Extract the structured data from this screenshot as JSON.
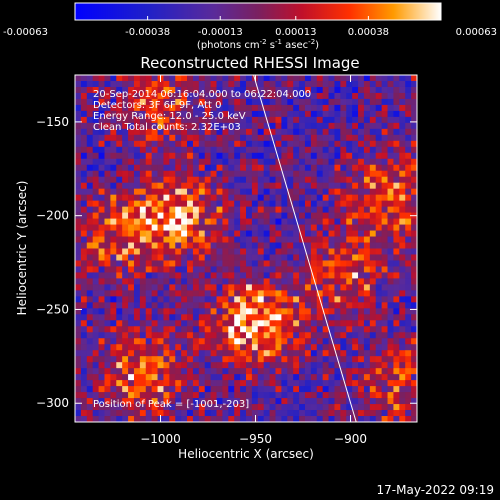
{
  "chart_data": {
    "type": "heatmap",
    "title": "Reconstructed RHESSI Image",
    "xlabel": "Heliocentric X (arcsec)",
    "ylabel": "Heliocentric Y (arcsec)",
    "xlim": [
      -1045,
      -865
    ],
    "ylim": [
      -310,
      -125
    ],
    "xticks": [
      -1000,
      -950,
      -900
    ],
    "xtick_labels": [
      "−1000",
      "−950",
      "−900"
    ],
    "yticks": [
      -150,
      -200,
      -250,
      -300
    ],
    "ytick_labels": [
      "−150",
      "−200",
      "−250",
      "−300"
    ],
    "colorbar": {
      "min": -0.00063,
      "max": 0.00063,
      "tick_values": [
        -0.00063,
        -0.00038,
        -0.00013,
        0.00013,
        0.00038,
        0.00063
      ],
      "tick_labels": [
        "-0.00063",
        "-0.00038",
        "-0.00013",
        "0.00013",
        "0.00038",
        "0.00063"
      ],
      "units_main": "(photons cm",
      "units_sup1": "-2",
      "units_mid1": " s",
      "units_sup2": "-1",
      "units_mid2": " asec",
      "units_sup3": "-2",
      "units_end": ")"
    },
    "annotations": {
      "time_range": "20-Sep-2014 06:16:04.000 to 06:22:04.000",
      "detectors": "Detectors: 3F 6F 9F, Att 0",
      "energy_range": "Energy Range: 12.0 - 25.0 keV",
      "clean_counts": "Clean    Total counts: 2.32E+03",
      "peak_position": "Position of Peak = [-1001,-203]"
    },
    "limb_line": {
      "x": [
        -951,
        -897
      ],
      "y": [
        -125,
        -310
      ]
    },
    "grid": false,
    "bright_regions": [
      {
        "x": -1022,
        "y": -210,
        "level": 0.6
      },
      {
        "x": -990,
        "y": -200,
        "level": 0.85
      },
      {
        "x": -950,
        "y": -257,
        "level": 0.95
      },
      {
        "x": -1010,
        "y": -285,
        "level": 0.7
      },
      {
        "x": -1000,
        "y": -140,
        "level": 0.55
      },
      {
        "x": -880,
        "y": -190,
        "level": 0.7
      },
      {
        "x": -905,
        "y": -230,
        "level": 0.6
      },
      {
        "x": -875,
        "y": -290,
        "level": 0.55
      }
    ]
  },
  "footer": {
    "timestamp": "17-May-2022 09:19"
  }
}
